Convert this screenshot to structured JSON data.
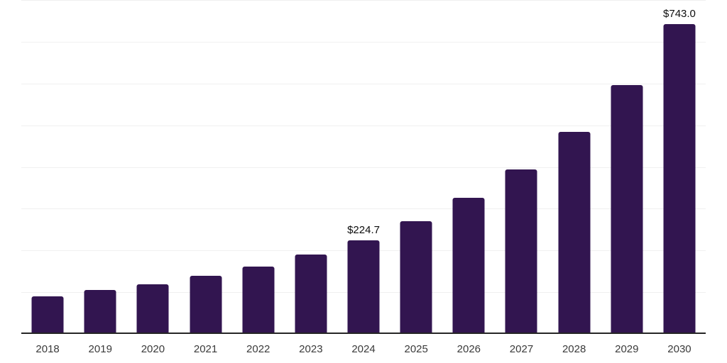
{
  "chart_data": {
    "type": "bar",
    "title": "",
    "xlabel": "",
    "ylabel": "",
    "legend": "none",
    "grid": "horizontal",
    "categories": [
      "2018",
      "2019",
      "2020",
      "2021",
      "2022",
      "2023",
      "2024",
      "2025",
      "2026",
      "2027",
      "2028",
      "2029",
      "2030"
    ],
    "values": [
      90.0,
      105.0,
      119.3,
      138.7,
      161.2,
      189.5,
      224.7,
      269.3,
      325.7,
      394.7,
      483.9,
      597.0,
      743.0
    ],
    "data_labels": [
      "",
      "",
      "",
      "",
      "",
      "",
      "$224.7",
      "",
      "",
      "",
      "",
      "",
      "$743.0"
    ],
    "ylim": [
      0,
      800
    ],
    "gridline_values": [
      100,
      200,
      300,
      400,
      500,
      600,
      700,
      800
    ],
    "colors": {
      "bar": "#321550",
      "axis_line": "#262626",
      "gridline": "#f0f0f0",
      "tick_label": "#3a3a3a",
      "data_label": "#0d0d0d",
      "background": "#ffffff"
    }
  }
}
